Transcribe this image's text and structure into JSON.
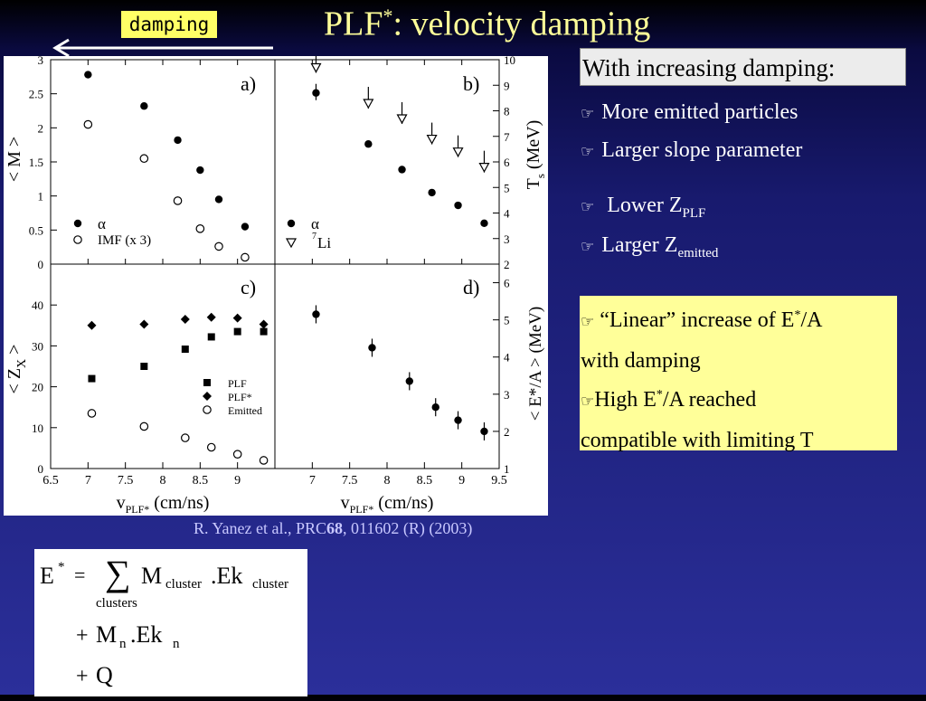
{
  "header": {
    "damping_tag": "damping",
    "title_main": "PLF",
    "title_sup": "*",
    "title_rest": ": velocity damping"
  },
  "citation": {
    "authors": "R. Yanez et al., PRC",
    "volume": "68",
    "rest": ", 011602 (R) (2003)"
  },
  "right_panel": {
    "heading": "With increasing damping:",
    "bullets": [
      {
        "text": "More emitted particles"
      },
      {
        "text": "Larger slope parameter"
      },
      {
        "text": "Lower Z",
        "sub": "PLF"
      },
      {
        "text": "Larger Z",
        "sub": "emitted"
      }
    ],
    "box": {
      "line1a": "“Linear” increase of E",
      "line1sup": "*",
      "line1b": "/A",
      "line2": "with damping",
      "line3a": "High E",
      "line3sup": "*",
      "line3b": "/A reached",
      "line4": "compatible with limiting T"
    }
  },
  "formula": {
    "E": "E",
    "star": "*",
    "eq": "=",
    "sum": "∑",
    "M": "M",
    "cluster_sub": "cluster",
    "dotEk": ".Ek",
    "clusters": "clusters",
    "plus": "+",
    "Mn": "M",
    "n": "n",
    "Q": "Q"
  },
  "chart_data": [
    {
      "panel": "a)",
      "type": "scatter",
      "ylabel": "< M >",
      "ylim": [
        0,
        3
      ],
      "yticks": [
        "0",
        "0.5",
        "1",
        "1.5",
        "2",
        "2.5",
        "3"
      ],
      "xlim": [
        6.5,
        9.5
      ],
      "series": [
        {
          "name": "α",
          "marker": "filled-circle",
          "x": [
            7.0,
            7.75,
            8.2,
            8.5,
            8.75,
            9.1
          ],
          "y": [
            2.78,
            2.32,
            1.82,
            1.38,
            0.95,
            0.55
          ]
        },
        {
          "name": "IMF (x 3)",
          "marker": "open-circle",
          "x": [
            7.0,
            7.75,
            8.2,
            8.5,
            8.75,
            9.1
          ],
          "y": [
            2.05,
            1.55,
            0.93,
            0.52,
            0.26,
            0.1
          ]
        }
      ]
    },
    {
      "panel": "b)",
      "type": "scatter",
      "ylabel": "T",
      "ylabel_sub": "s",
      "ylabel_unit": "(MeV)",
      "ylim": [
        2,
        10
      ],
      "yticks": [
        "2",
        "3",
        "4",
        "5",
        "6",
        "7",
        "8",
        "9",
        "10"
      ],
      "xlim": [
        6.5,
        9.5
      ],
      "series": [
        {
          "name": "α",
          "marker": "filled-circle",
          "x": [
            7.05,
            7.75,
            8.2,
            8.6,
            8.95,
            9.3
          ],
          "y": [
            8.7,
            6.7,
            5.7,
            4.8,
            4.3,
            3.6
          ]
        },
        {
          "name": "Li",
          "name_sup": "7",
          "marker": "open-triangle",
          "x": [
            7.05,
            7.75,
            8.2,
            8.6,
            8.95,
            9.3
          ],
          "y": [
            9.7,
            8.3,
            7.7,
            6.9,
            6.4,
            5.8
          ]
        }
      ]
    },
    {
      "panel": "c)",
      "type": "scatter",
      "ylabel": "< Z",
      "ylabel_sub": "X",
      "ylabel_end": " >",
      "ylim": [
        0,
        50
      ],
      "yticks": [
        "0",
        "10",
        "20",
        "30",
        "40"
      ],
      "xlim": [
        6.5,
        9.5
      ],
      "xticks": [
        "6.5",
        "7",
        "7.5",
        "8",
        "8.5",
        "9"
      ],
      "xlabel": "v",
      "xlabel_sub": "PLF*",
      "xlabel_unit": "(cm/ns)",
      "series": [
        {
          "name": "PLF",
          "marker": "filled-square",
          "x": [
            7.05,
            7.75,
            8.3,
            8.65,
            9.0,
            9.35
          ],
          "y": [
            22,
            25,
            29.2,
            32.2,
            33.5,
            33.5
          ]
        },
        {
          "name": "PLF*",
          "marker": "filled-diamond",
          "x": [
            7.05,
            7.75,
            8.3,
            8.65,
            9.0,
            9.35
          ],
          "y": [
            35,
            35.3,
            36.5,
            37,
            36.8,
            35.3
          ]
        },
        {
          "name": "Emitted",
          "marker": "open-circle",
          "x": [
            7.05,
            7.75,
            8.3,
            8.65,
            9.0,
            9.35
          ],
          "y": [
            13.5,
            10.3,
            7.5,
            5.2,
            3.5,
            2
          ]
        }
      ]
    },
    {
      "panel": "d)",
      "type": "scatter",
      "ylabel": "< E*/A > (MeV)",
      "ylim": [
        1,
        6.5
      ],
      "yticks": [
        "1",
        "2",
        "3",
        "4",
        "5",
        "6"
      ],
      "xlim": [
        6.5,
        9.5
      ],
      "xticks": [
        "7",
        "7.5",
        "8",
        "8.5",
        "9",
        "9.5"
      ],
      "xlabel": "v",
      "xlabel_sub": "PLF*",
      "xlabel_unit": "(cm/ns)",
      "series": [
        {
          "name": "",
          "marker": "filled-circle",
          "x": [
            7.05,
            7.8,
            8.3,
            8.65,
            8.95,
            9.3
          ],
          "y": [
            5.15,
            4.25,
            3.35,
            2.65,
            2.3,
            2.0
          ]
        }
      ]
    }
  ]
}
